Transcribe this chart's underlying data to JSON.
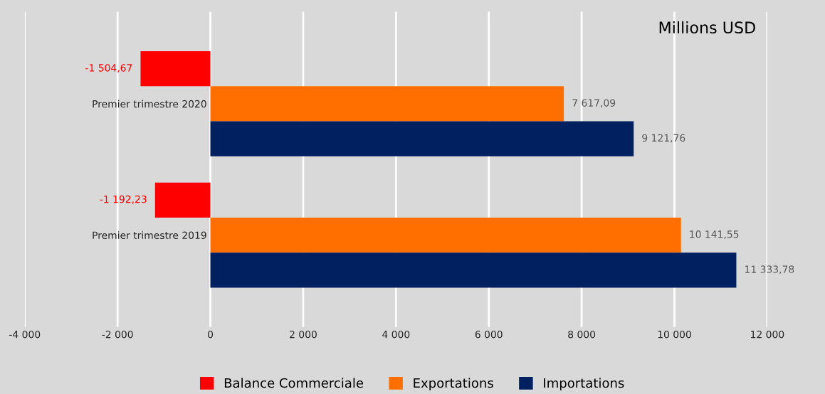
{
  "chart_data": {
    "type": "bar",
    "orientation": "horizontal",
    "categories": [
      "Premier trimestre 2020",
      "Premier trimestre 2019"
    ],
    "series": [
      {
        "name": "Balance Commerciale",
        "color": "#ff0000",
        "values": [
          -1504.67,
          -1192.23
        ],
        "value_labels": [
          "-1 504,67",
          "-1 192,23"
        ]
      },
      {
        "name": "Exportations",
        "color": "#ff6f00",
        "values": [
          7617.09,
          10141.55
        ],
        "value_labels": [
          "7 617,09",
          "10 141,55"
        ]
      },
      {
        "name": "Importations",
        "color": "#002060",
        "values": [
          9121.76,
          11333.78
        ],
        "value_labels": [
          "9 121,76",
          "11 333,78"
        ]
      }
    ],
    "xlim": [
      -4000,
      12000
    ],
    "xticks": [
      {
        "value": -4000,
        "label": "-4 000"
      },
      {
        "value": -2000,
        "label": "-2 000"
      },
      0,
      {
        "value": 2000,
        "label": "2 000"
      },
      {
        "value": 4000,
        "label": "4 000"
      },
      {
        "value": 6000,
        "label": "6 000"
      },
      {
        "value": 8000,
        "label": "8 000"
      },
      {
        "value": 10000,
        "label": "10 000"
      },
      {
        "value": 12000,
        "label": "12 000"
      }
    ],
    "grid": "x",
    "legend": "bottom",
    "annotations": [
      "Millions USD"
    ]
  }
}
